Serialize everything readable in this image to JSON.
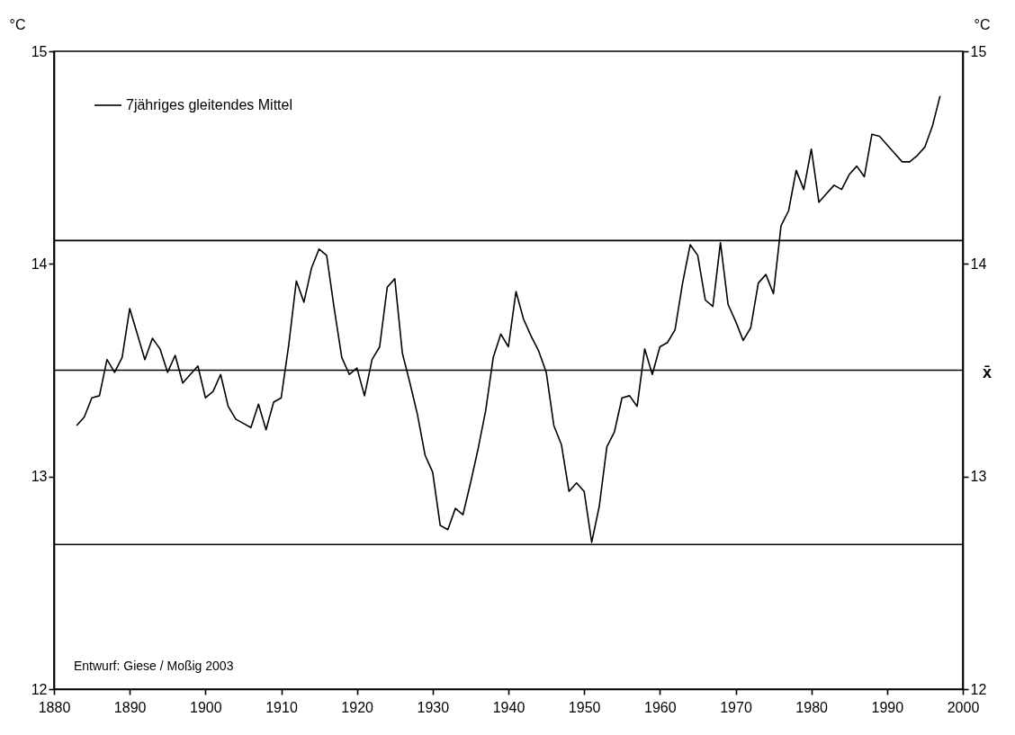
{
  "chart_data": {
    "type": "line",
    "ylabel": "°C",
    "y2label": "°C",
    "x": [
      1883,
      1884,
      1885,
      1886,
      1887,
      1888,
      1889,
      1890,
      1891,
      1892,
      1893,
      1894,
      1895,
      1896,
      1897,
      1898,
      1899,
      1900,
      1901,
      1902,
      1903,
      1904,
      1905,
      1906,
      1907,
      1908,
      1909,
      1910,
      1911,
      1912,
      1913,
      1914,
      1915,
      1916,
      1917,
      1918,
      1919,
      1920,
      1921,
      1922,
      1923,
      1924,
      1925,
      1926,
      1927,
      1928,
      1929,
      1930,
      1931,
      1932,
      1933,
      1934,
      1935,
      1936,
      1937,
      1938,
      1939,
      1940,
      1941,
      1942,
      1943,
      1944,
      1945,
      1946,
      1947,
      1948,
      1949,
      1950,
      1951,
      1952,
      1953,
      1954,
      1955,
      1956,
      1957,
      1958,
      1959,
      1960,
      1961,
      1962,
      1963,
      1964,
      1965,
      1966,
      1967,
      1968,
      1969,
      1970,
      1971,
      1972,
      1973,
      1974,
      1975,
      1976,
      1977,
      1978,
      1979,
      1980,
      1981,
      1982,
      1983,
      1984,
      1985,
      1986,
      1987,
      1988,
      1989,
      1990,
      1991,
      1992,
      1993,
      1994,
      1995,
      1996,
      1997
    ],
    "series": [
      {
        "name": "7jähriges gleitendes Mittel",
        "color": "#000000",
        "values": [
          13.24,
          13.28,
          13.37,
          13.38,
          13.55,
          13.49,
          13.56,
          13.79,
          13.67,
          13.55,
          13.65,
          13.6,
          13.49,
          13.57,
          13.44,
          13.48,
          13.52,
          13.37,
          13.4,
          13.48,
          13.33,
          13.27,
          13.25,
          13.23,
          13.34,
          13.22,
          13.35,
          13.37,
          13.62,
          13.92,
          13.82,
          13.98,
          14.07,
          14.04,
          13.79,
          13.56,
          13.48,
          13.51,
          13.38,
          13.55,
          13.61,
          13.89,
          13.93,
          13.58,
          13.44,
          13.29,
          13.1,
          13.02,
          12.77,
          12.75,
          12.85,
          12.82,
          12.97,
          13.13,
          13.31,
          13.56,
          13.67,
          13.61,
          13.87,
          13.74,
          13.66,
          13.59,
          13.49,
          13.24,
          13.15,
          12.93,
          12.97,
          12.93,
          12.69,
          12.86,
          13.14,
          13.21,
          13.37,
          13.38,
          13.33,
          13.6,
          13.48,
          13.61,
          13.63,
          13.69,
          13.91,
          14.09,
          14.04,
          13.83,
          13.8,
          14.1,
          13.81,
          13.73,
          13.64,
          13.7,
          13.91,
          13.95,
          13.86,
          14.18,
          14.25,
          14.44,
          14.35,
          14.54,
          14.29,
          14.33,
          14.37,
          14.35,
          14.42,
          14.46,
          14.41,
          14.61,
          14.6,
          14.56,
          14.52,
          14.48,
          14.48,
          14.51,
          14.55,
          14.65,
          14.79
        ]
      }
    ],
    "xlim": [
      1880,
      2000
    ],
    "xticks": [
      1880,
      1890,
      1900,
      1910,
      1920,
      1930,
      1940,
      1950,
      1960,
      1970,
      1980,
      1990,
      2000
    ],
    "ylim": [
      12,
      15
    ],
    "yticks": [
      12,
      13,
      14,
      15
    ],
    "y2lim": [
      12,
      15
    ],
    "y2ticks": [
      12,
      13,
      14,
      15
    ],
    "ref_lines": [
      {
        "axis": "y",
        "value": 14.11,
        "color": "#000000"
      },
      {
        "axis": "y",
        "value": 13.5,
        "label": "x̄",
        "color": "#000000"
      },
      {
        "axis": "y",
        "value": 12.68,
        "color": "#000000"
      }
    ],
    "annotations": [
      "Entwurf: Giese / Moßig 2003"
    ],
    "legend": "top left",
    "marker": "none",
    "line_style": "solid",
    "grid": false
  }
}
